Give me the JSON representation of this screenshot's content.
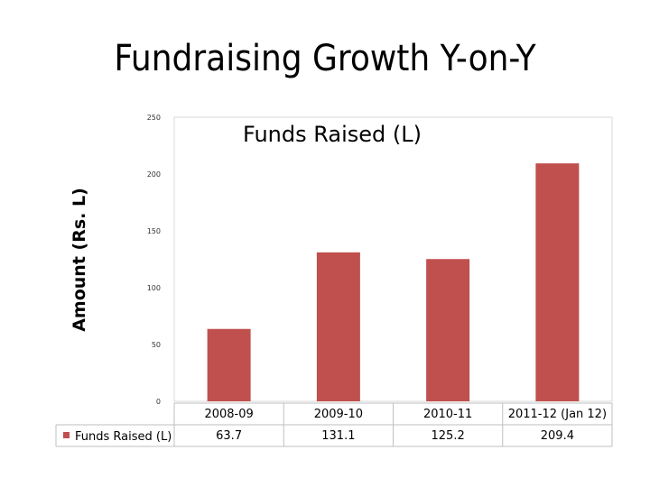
{
  "slide": {
    "title": "Fundraising Growth Y-on-Y"
  },
  "chart_data": {
    "type": "bar",
    "title": "Funds Raised (L)",
    "ylabel": "Amount (Rs. L)",
    "xlabel": "",
    "categories": [
      "2008-09",
      "2009-10",
      "2010-11",
      "2011-12 (Jan 12)"
    ],
    "series": [
      {
        "name": "Funds Raised (L)",
        "values": [
          63.7,
          131.1,
          125.2,
          209.4
        ],
        "color": "#C0504D"
      }
    ],
    "yticks": [
      "250",
      "200",
      "150",
      "100",
      "50",
      "0"
    ],
    "ylim": [
      0,
      250
    ],
    "grid": false,
    "legend": "data-table-left"
  }
}
